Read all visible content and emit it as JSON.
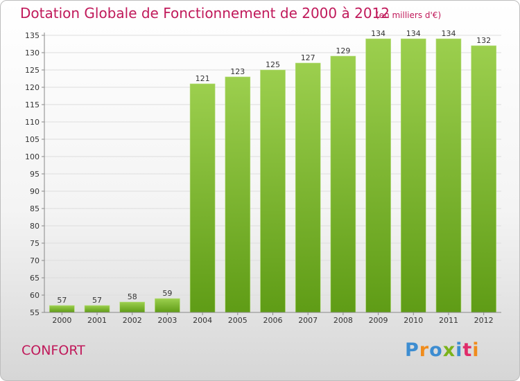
{
  "title": "Dotation Globale de Fonctionnement de 2000 à 2012",
  "unit_note": "(en milliers d'€)",
  "commune": "CONFORT",
  "logo": {
    "text": "Proxiti",
    "colors": [
      "#3d8dd1",
      "#f08c1c",
      "#3d8dd1",
      "#7bb31b",
      "#3d8dd1",
      "#e02c6a",
      "#f08c1c"
    ]
  },
  "colors": {
    "title": "#c0195a",
    "bar_light": "#9ccf4e",
    "bar_dark": "#5f9c16",
    "grid": "#dddddd"
  },
  "chart_data": {
    "type": "bar",
    "categories": [
      "2000",
      "2001",
      "2002",
      "2003",
      "2004",
      "2005",
      "2006",
      "2007",
      "2008",
      "2009",
      "2010",
      "2011",
      "2012"
    ],
    "values": [
      57,
      57,
      58,
      59,
      121,
      123,
      125,
      127,
      129,
      134,
      134,
      134,
      132
    ],
    "ylim": [
      55,
      135
    ],
    "yticks": [
      "55",
      "60",
      "65",
      "70",
      "75",
      "80",
      "85",
      "90",
      "95",
      "100",
      "105",
      "110",
      "115",
      "120",
      "125",
      "130",
      "135"
    ],
    "grid": true,
    "xlabel": "",
    "ylabel": ""
  }
}
